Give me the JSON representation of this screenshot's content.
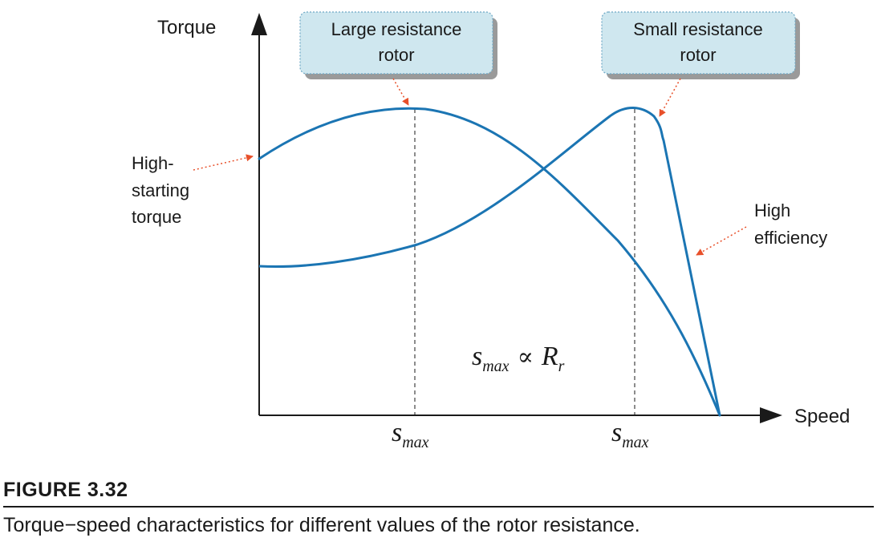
{
  "figure": {
    "number": "FIGURE 3.32",
    "caption": "Torque−speed characteristics for different values of the rotor resistance."
  },
  "chart_data": {
    "type": "line",
    "xlabel": "Speed",
    "ylabel": "Torque",
    "x_ticks": [
      {
        "main": "s",
        "sub": "max",
        "x": 0.33
      },
      {
        "main": "s",
        "sub": "max",
        "x": 0.81
      }
    ],
    "xlim": [
      0,
      1
    ],
    "ylim": [
      0,
      1
    ],
    "grid": false,
    "series": [
      {
        "points": [
          [
            0,
            0.85
          ],
          [
            0.11,
            0.97
          ],
          [
            0.22,
            1.0
          ],
          [
            0.33,
            1.0
          ],
          [
            0.44,
            0.96
          ],
          [
            0.55,
            0.86
          ],
          [
            0.66,
            0.69
          ],
          [
            0.77,
            0.52
          ],
          [
            0.85,
            0.36
          ],
          [
            0.92,
            0.17
          ],
          [
            0.99,
            0
          ]
        ]
      },
      {
        "points": [
          [
            0,
            0.5
          ],
          [
            0.11,
            0.51
          ],
          [
            0.22,
            0.53
          ],
          [
            0.33,
            0.57
          ],
          [
            0.44,
            0.64
          ],
          [
            0.55,
            0.74
          ],
          [
            0.66,
            0.87
          ],
          [
            0.76,
            1.0
          ],
          [
            0.81,
            1.02
          ],
          [
            0.85,
            0.93
          ],
          [
            0.99,
            0
          ]
        ]
      }
    ],
    "callouts": [
      {
        "text": [
          "Large resistance",
          "rotor"
        ]
      },
      {
        "text": [
          "Small resistance",
          "rotor"
        ]
      }
    ],
    "annotations": [
      {
        "text": [
          "High-",
          "starting",
          "torque"
        ]
      },
      {
        "text": [
          "High",
          "efficiency"
        ]
      }
    ],
    "formula": {
      "lhs_main": "s",
      "lhs_sub": "max",
      "op": "∝",
      "rhs_main": "R",
      "rhs_sub": "r"
    },
    "colors": {
      "curve": "#1b75b3",
      "arrow": "#e8502a",
      "callout_fill": "#cfe7ef",
      "callout_border": "#6ea8c5",
      "callout_shadow": "#9a9a9a",
      "axis": "#1a1a1a",
      "dashed": "#1a1a1a"
    }
  }
}
